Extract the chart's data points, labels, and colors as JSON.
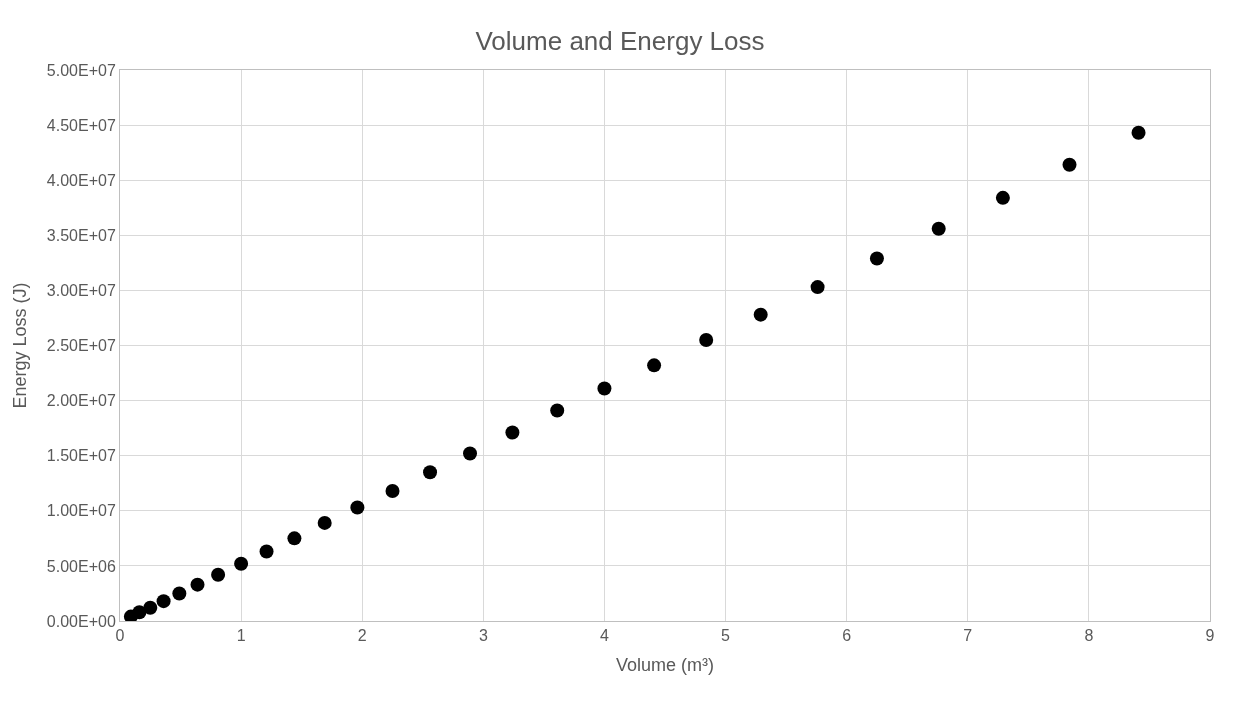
{
  "chart_data": {
    "type": "scatter",
    "title": "Volume and Energy Loss",
    "xlabel": "Volume (m³)",
    "ylabel": "Energy Loss (J)",
    "x": [
      0.09,
      0.16,
      0.25,
      0.36,
      0.49,
      0.64,
      0.81,
      1.0,
      1.21,
      1.44,
      1.69,
      1.96,
      2.25,
      2.56,
      2.89,
      3.24,
      3.61,
      4.0,
      4.41,
      4.84,
      5.29,
      5.76,
      6.25,
      6.76,
      7.29,
      7.84,
      8.41
    ],
    "series": [
      {
        "color": "#000000",
        "values": [
          400000,
          800000,
          1200000,
          1800000,
          2500000,
          3300000,
          4200000,
          5200000,
          6300000,
          7500000,
          8900000,
          10300000,
          11800000,
          13500000,
          15200000,
          17100000,
          19100000,
          21100000,
          23200000,
          25500000,
          27800000,
          30300000,
          32900000,
          35600000,
          38400000,
          41400000,
          44300000
        ]
      }
    ],
    "xlim": [
      0,
      9
    ],
    "xticks": [
      0,
      1,
      2,
      3,
      4,
      5,
      6,
      7,
      8,
      9
    ],
    "ylim": [
      0,
      50000000
    ],
    "yticks": [
      {
        "value": 0,
        "label": "0.00E+00"
      },
      {
        "value": 5000000,
        "label": "5.00E+06"
      },
      {
        "value": 10000000,
        "label": "1.00E+07"
      },
      {
        "value": 15000000,
        "label": "1.50E+07"
      },
      {
        "value": 20000000,
        "label": "2.00E+07"
      },
      {
        "value": 25000000,
        "label": "2.50E+07"
      },
      {
        "value": 30000000,
        "label": "3.00E+07"
      },
      {
        "value": 35000000,
        "label": "3.50E+07"
      },
      {
        "value": 40000000,
        "label": "4.00E+07"
      },
      {
        "value": 45000000,
        "label": "4.50E+07"
      },
      {
        "value": 50000000,
        "label": "5.00E+07"
      }
    ],
    "grid": true,
    "marker": "circle"
  }
}
